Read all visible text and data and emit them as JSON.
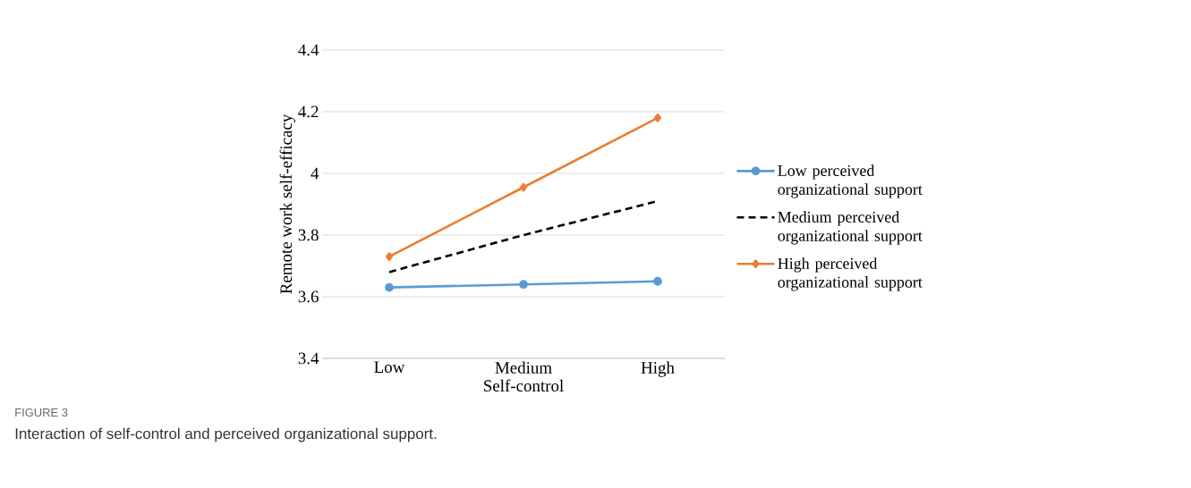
{
  "chart_data": {
    "type": "line",
    "title": "FIGURE 3",
    "subtitle": "Interaction of self-control and perceived organizational support.",
    "xlabel": "Self-control",
    "ylabel": "Remote work self-efficacy",
    "categories": [
      "Low",
      "Medium",
      "High"
    ],
    "series": [
      {
        "name": "Low perceived organizational support",
        "color": "#5b9bd5",
        "values": [
          3.63,
          3.64,
          3.65
        ],
        "marker": "circle",
        "line_style": "solid"
      },
      {
        "name": "Medium perceived organizational support",
        "color": "#000000",
        "values": [
          3.68,
          3.8,
          3.91
        ],
        "marker": "none",
        "line_style": "dashed"
      },
      {
        "name": "High perceived organizational support",
        "color": "#ed7d31",
        "values": [
          3.73,
          3.955,
          4.18
        ],
        "marker": "diamond",
        "line_style": "solid"
      }
    ],
    "ylim": [
      3.4,
      4.4
    ],
    "yticks": [
      3.4,
      3.6,
      3.8,
      4,
      4.2,
      4.4
    ],
    "grid": "y",
    "legend": "right"
  }
}
